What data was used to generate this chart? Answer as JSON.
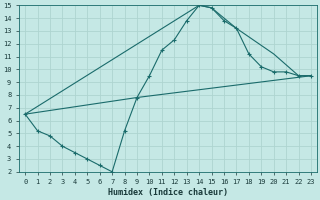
{
  "xlabel": "Humidex (Indice chaleur)",
  "xlim": [
    -0.5,
    23.5
  ],
  "ylim": [
    2,
    15
  ],
  "xticks": [
    0,
    1,
    2,
    3,
    4,
    5,
    6,
    7,
    8,
    9,
    10,
    11,
    12,
    13,
    14,
    15,
    16,
    17,
    18,
    19,
    20,
    21,
    22,
    23
  ],
  "yticks": [
    2,
    3,
    4,
    5,
    6,
    7,
    8,
    9,
    10,
    11,
    12,
    13,
    14,
    15
  ],
  "background_color": "#c5e8e5",
  "grid_color": "#aed4d0",
  "line_color": "#1a6b6b",
  "line1_x": [
    0,
    1,
    2,
    3,
    4,
    5,
    6,
    7,
    8,
    9,
    10,
    11,
    12,
    13,
    14,
    15,
    16,
    17,
    18,
    19,
    20,
    21,
    22,
    23
  ],
  "line1_y": [
    6.5,
    5.2,
    4.8,
    4.0,
    3.5,
    3.0,
    2.5,
    2.0,
    5.2,
    7.8,
    9.5,
    11.5,
    12.3,
    13.8,
    15.0,
    14.8,
    13.8,
    13.2,
    11.2,
    10.2,
    9.8,
    9.8,
    9.5,
    9.5
  ],
  "line2_x": [
    0,
    14,
    15,
    17,
    20,
    22,
    23
  ],
  "line2_y": [
    6.5,
    15.0,
    14.8,
    13.2,
    11.2,
    9.5,
    9.5
  ],
  "line3_x": [
    0,
    9,
    23
  ],
  "line3_y": [
    6.5,
    7.8,
    9.5
  ]
}
